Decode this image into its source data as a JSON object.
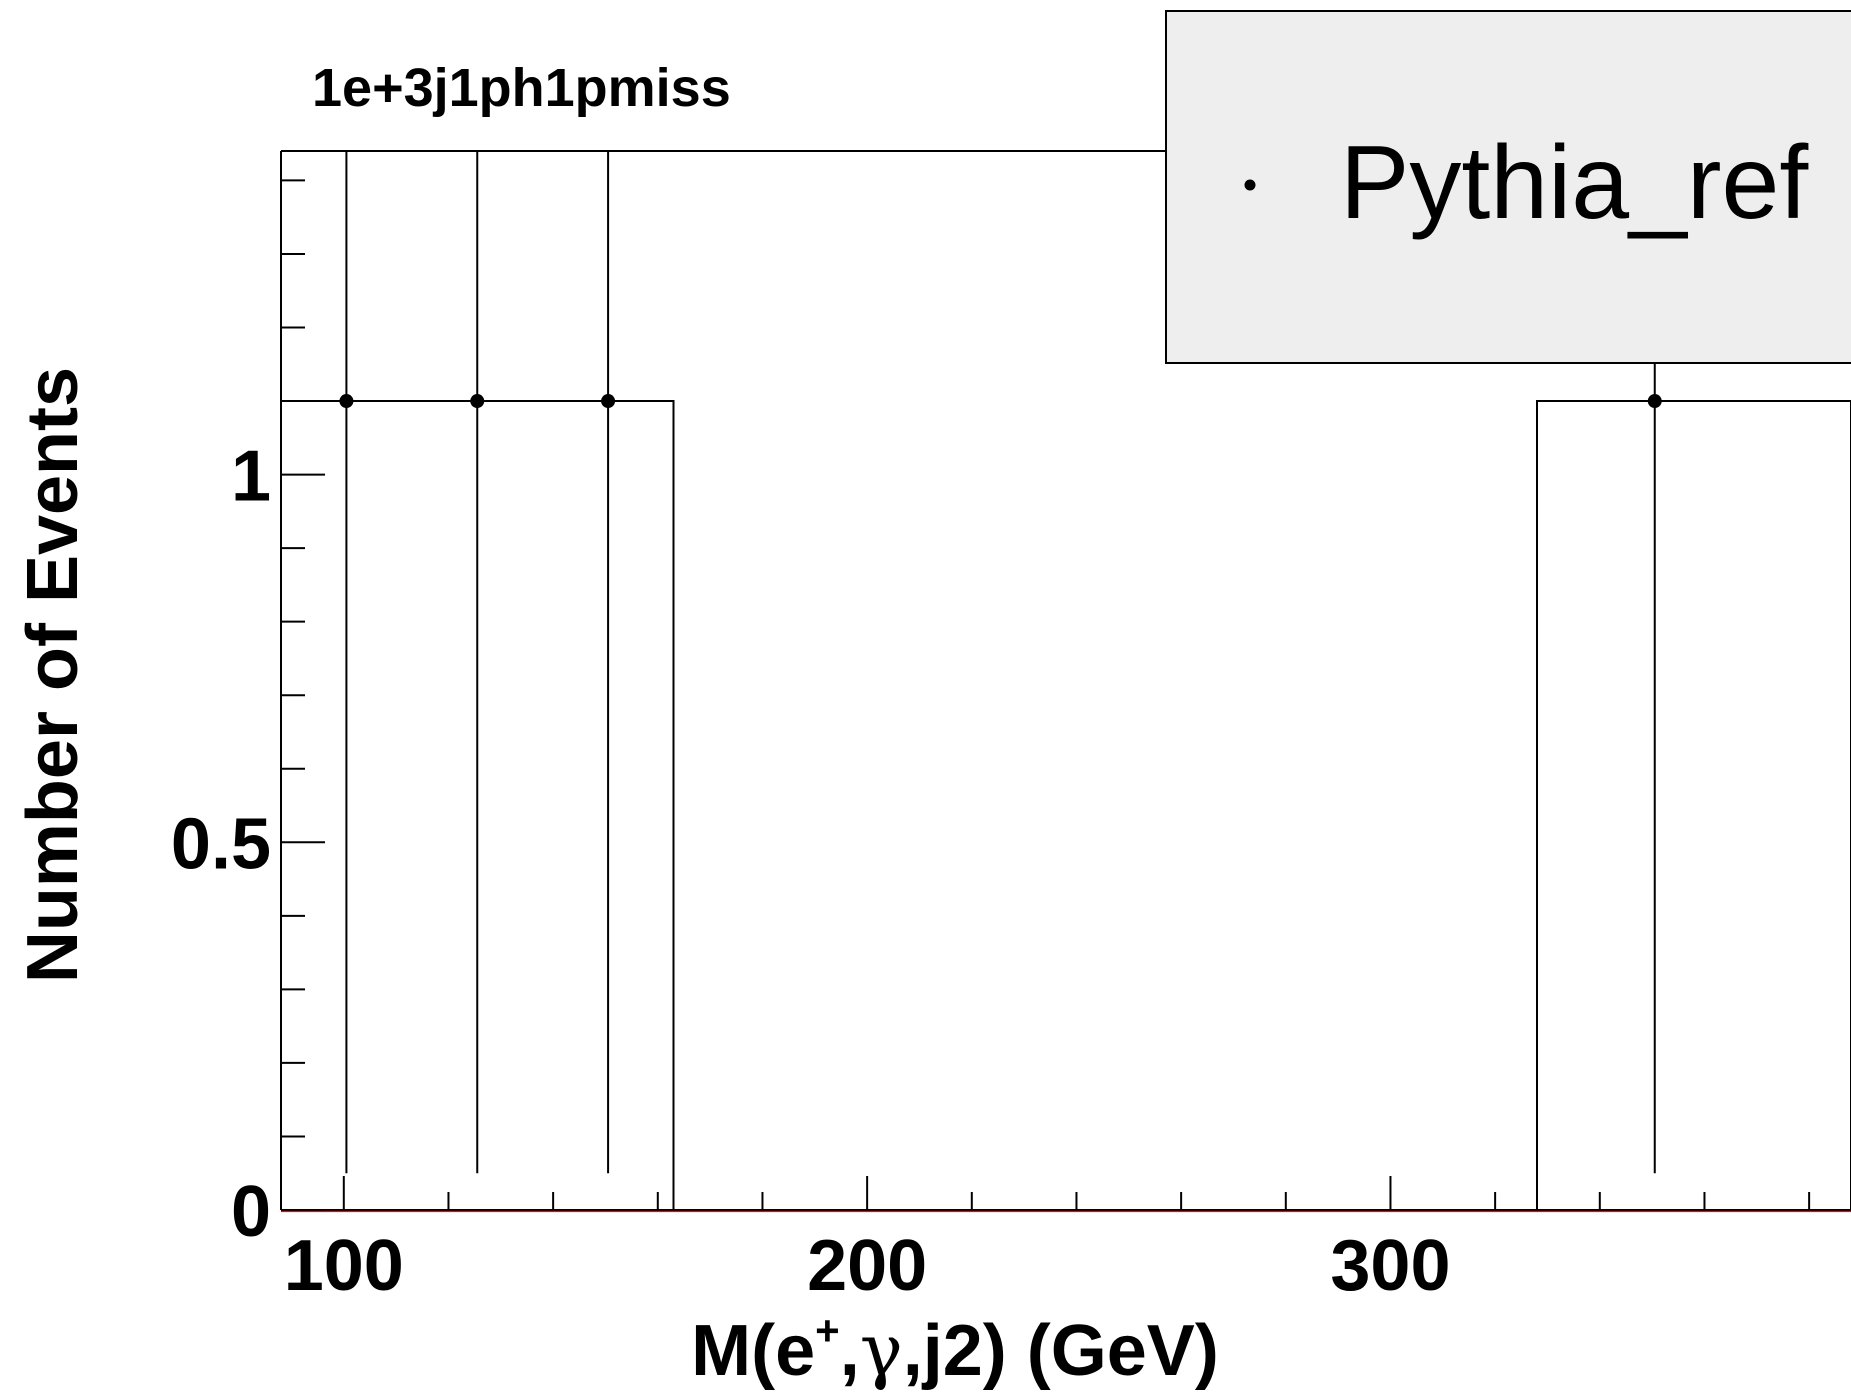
{
  "chart_data": {
    "type": "histogram",
    "title": "1e+3j1ph1pmiss",
    "xlabel_parts": {
      "base": "M(e",
      "superscript": "+",
      "middle": ",",
      "greek": "γ",
      "tail": ",j2) (GeV)"
    },
    "ylabel": "Number of Events",
    "xlim": [
      88,
      388
    ],
    "ylim": [
      0,
      1.44
    ],
    "x_major_ticks": [
      100,
      200,
      300
    ],
    "x_minor_step": 20,
    "y_major_ticks": [
      0,
      0.5,
      1
    ],
    "y_tick_labels": [
      "0",
      "0.5",
      "1"
    ],
    "y_minor_step": 0.1,
    "bins": [
      {
        "low": 88,
        "high": 163,
        "value": 1.1
      },
      {
        "low": 163,
        "high": 328,
        "value": 0
      },
      {
        "low": 328,
        "high": 388,
        "value": 1.1
      }
    ],
    "series": [
      {
        "name": "Pythia_ref",
        "color": "#000000",
        "points": [
          {
            "x": 100.5,
            "y": 1.1,
            "err_low": 1.05,
            "err_high": 1.44
          },
          {
            "x": 125.5,
            "y": 1.1,
            "err_low": 1.05,
            "err_high": 1.44
          },
          {
            "x": 150.5,
            "y": 1.1,
            "err_low": 1.05,
            "err_high": 1.44
          },
          {
            "x": 350.5,
            "y": 1.1,
            "err_low": 1.05,
            "err_high": 1.44
          }
        ]
      }
    ],
    "legend": {
      "position": "top-right",
      "entries": [
        "Pythia_ref"
      ],
      "background": "#eeeeee"
    },
    "axis_line_color": "#b22222"
  }
}
